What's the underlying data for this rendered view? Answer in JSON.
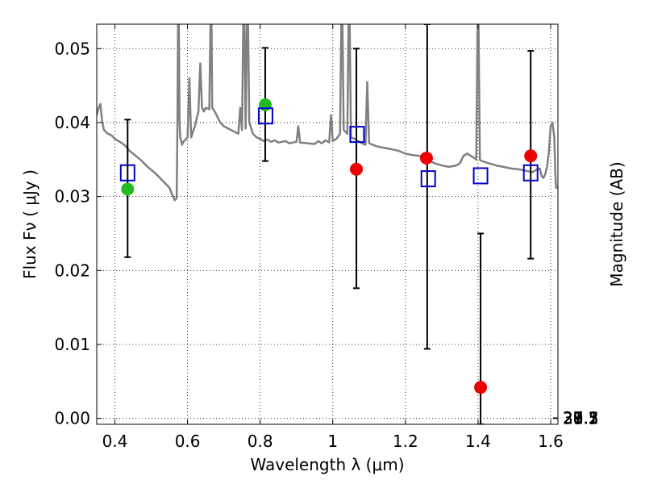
{
  "chart_data": {
    "type": "scatter",
    "xlabel": "Wavelength  λ (μm)",
    "ylabel": "Flux  Fν  ( μJy )",
    "ylabel_right": "Magnitude (AB)",
    "xlim": [
      0.35,
      1.62
    ],
    "ylim": [
      -0.0008,
      0.0533
    ],
    "grid": true,
    "x_ticks": [
      0.4,
      0.6,
      0.8,
      1.0,
      1.2,
      1.4,
      1.6
    ],
    "x_tick_labels": [
      "0.4",
      "0.6",
      "0.8",
      "1",
      "1.2",
      "1.4",
      "1.6"
    ],
    "y_ticks": [
      0.0,
      0.01,
      0.02,
      0.03,
      0.04,
      0.05
    ],
    "y_tick_labels": [
      "0.00",
      "0.01",
      "0.02",
      "0.03",
      "0.04",
      "0.05"
    ],
    "right_ticks": [
      27.1,
      27.3,
      27.5,
      27.7,
      28,
      28.2,
      28.5,
      29,
      29.5,
      30,
      31
    ],
    "right_tick_labels": [
      "27.1",
      "27.3",
      "27.5",
      "27.7",
      "28",
      "28.2",
      "28.5",
      "29",
      "29.5",
      "30",
      "31"
    ],
    "series": [
      {
        "kind": "points",
        "marker": "circle",
        "color": "#22bb22",
        "points": [
          {
            "x": 0.435,
            "y": 0.031
          },
          {
            "x": 0.814,
            "y": 0.0424
          }
        ]
      },
      {
        "kind": "points",
        "marker": "circle",
        "color": "#ee0000",
        "points": [
          {
            "x": 1.065,
            "y": 0.0337
          },
          {
            "x": 1.258,
            "y": 0.0352
          },
          {
            "x": 1.407,
            "y": 0.0042
          },
          {
            "x": 1.545,
            "y": 0.0355
          }
        ]
      },
      {
        "kind": "errorbars",
        "color": "#000000",
        "bars": [
          {
            "x": 0.435,
            "low": 0.0218,
            "high": 0.0404
          },
          {
            "x": 0.814,
            "low": 0.0348,
            "high": 0.0501
          },
          {
            "x": 1.065,
            "low": 0.0176,
            "high": 0.05
          },
          {
            "x": 1.26,
            "low": 0.0094,
            "high": 0.0533
          },
          {
            "x": 1.407,
            "low": -0.0008,
            "high": 0.025
          },
          {
            "x": 1.545,
            "low": 0.0216,
            "high": 0.0497
          }
        ]
      },
      {
        "kind": "points",
        "marker": "open-square",
        "color": "#0000cc",
        "points": [
          {
            "x": 0.435,
            "y": 0.0332
          },
          {
            "x": 0.815,
            "y": 0.0409
          },
          {
            "x": 1.067,
            "y": 0.0384
          },
          {
            "x": 1.263,
            "y": 0.0324
          },
          {
            "x": 1.407,
            "y": 0.0328
          },
          {
            "x": 1.545,
            "y": 0.0332
          }
        ]
      },
      {
        "kind": "line",
        "color": "#808080",
        "points": [
          [
            0.35,
            0.041
          ],
          [
            0.355,
            0.042
          ],
          [
            0.36,
            0.0425
          ],
          [
            0.365,
            0.04
          ],
          [
            0.37,
            0.039
          ],
          [
            0.38,
            0.0385
          ],
          [
            0.39,
            0.0383
          ],
          [
            0.4,
            0.0378
          ],
          [
            0.41,
            0.0375
          ],
          [
            0.42,
            0.0372
          ],
          [
            0.43,
            0.0368
          ],
          [
            0.44,
            0.0362
          ],
          [
            0.45,
            0.0358
          ],
          [
            0.47,
            0.035
          ],
          [
            0.49,
            0.034
          ],
          [
            0.51,
            0.0332
          ],
          [
            0.53,
            0.0322
          ],
          [
            0.55,
            0.0312
          ],
          [
            0.56,
            0.03
          ],
          [
            0.565,
            0.0295
          ],
          [
            0.57,
            0.0298
          ],
          [
            0.572,
            0.039
          ],
          [
            0.575,
            0.061
          ],
          [
            0.578,
            0.04
          ],
          [
            0.58,
            0.038
          ],
          [
            0.585,
            0.037
          ],
          [
            0.59,
            0.0375
          ],
          [
            0.6,
            0.038
          ],
          [
            0.605,
            0.046
          ],
          [
            0.61,
            0.038
          ],
          [
            0.62,
            0.0395
          ],
          [
            0.63,
            0.0415
          ],
          [
            0.635,
            0.048
          ],
          [
            0.64,
            0.042
          ],
          [
            0.645,
            0.0415
          ],
          [
            0.65,
            0.042
          ],
          [
            0.66,
            0.0418
          ],
          [
            0.665,
            0.06
          ],
          [
            0.668,
            0.042
          ],
          [
            0.675,
            0.0415
          ],
          [
            0.68,
            0.041
          ],
          [
            0.69,
            0.04
          ],
          [
            0.7,
            0.0395
          ],
          [
            0.72,
            0.039
          ],
          [
            0.74,
            0.0385
          ],
          [
            0.745,
            0.042
          ],
          [
            0.75,
            0.039
          ],
          [
            0.755,
            0.06
          ],
          [
            0.76,
            0.0392
          ],
          [
            0.765,
            0.06
          ],
          [
            0.77,
            0.04
          ],
          [
            0.78,
            0.0385
          ],
          [
            0.79,
            0.038
          ],
          [
            0.8,
            0.0378
          ],
          [
            0.81,
            0.0375
          ],
          [
            0.82,
            0.0377
          ],
          [
            0.83,
            0.0374
          ],
          [
            0.84,
            0.0376
          ],
          [
            0.85,
            0.0373
          ],
          [
            0.87,
            0.0375
          ],
          [
            0.88,
            0.0372
          ],
          [
            0.9,
            0.0374
          ],
          [
            0.905,
            0.0395
          ],
          [
            0.91,
            0.0373
          ],
          [
            0.93,
            0.0372
          ],
          [
            0.95,
            0.0371
          ],
          [
            0.96,
            0.0375
          ],
          [
            0.97,
            0.0372
          ],
          [
            0.98,
            0.0376
          ],
          [
            0.99,
            0.0373
          ],
          [
            0.995,
            0.041
          ],
          [
            1.0,
            0.0375
          ],
          [
            1.01,
            0.0378
          ],
          [
            1.02,
            0.0385
          ],
          [
            1.025,
            0.06
          ],
          [
            1.03,
            0.039
          ],
          [
            1.04,
            0.0385
          ],
          [
            1.045,
            0.06
          ],
          [
            1.05,
            0.038
          ],
          [
            1.06,
            0.0378
          ],
          [
            1.07,
            0.0375
          ],
          [
            1.08,
            0.0372
          ],
          [
            1.09,
            0.037
          ],
          [
            1.095,
            0.0455
          ],
          [
            1.1,
            0.0372
          ],
          [
            1.12,
            0.0368
          ],
          [
            1.14,
            0.0366
          ],
          [
            1.16,
            0.0364
          ],
          [
            1.18,
            0.0362
          ],
          [
            1.2,
            0.0358
          ],
          [
            1.22,
            0.0356
          ],
          [
            1.24,
            0.0355
          ],
          [
            1.26,
            0.035
          ],
          [
            1.28,
            0.0345
          ],
          [
            1.3,
            0.0342
          ],
          [
            1.32,
            0.034
          ],
          [
            1.34,
            0.0342
          ],
          [
            1.35,
            0.0345
          ],
          [
            1.36,
            0.0355
          ],
          [
            1.37,
            0.0358
          ],
          [
            1.38,
            0.0355
          ],
          [
            1.39,
            0.0352
          ],
          [
            1.395,
            0.035
          ],
          [
            1.4,
            0.06
          ],
          [
            1.405,
            0.035
          ],
          [
            1.41,
            0.0348
          ],
          [
            1.43,
            0.0345
          ],
          [
            1.45,
            0.0342
          ],
          [
            1.47,
            0.034
          ],
          [
            1.49,
            0.0338
          ],
          [
            1.51,
            0.0337
          ],
          [
            1.53,
            0.0335
          ],
          [
            1.55,
            0.0333
          ],
          [
            1.56,
            0.0336
          ],
          [
            1.57,
            0.0338
          ],
          [
            1.575,
            0.0328
          ],
          [
            1.58,
            0.0325
          ],
          [
            1.585,
            0.033
          ],
          [
            1.59,
            0.034
          ],
          [
            1.595,
            0.036
          ],
          [
            1.6,
            0.0395
          ],
          [
            1.605,
            0.04
          ],
          [
            1.61,
            0.038
          ],
          [
            1.613,
            0.033
          ],
          [
            1.615,
            0.0312
          ],
          [
            1.62,
            0.0312
          ]
        ]
      }
    ]
  }
}
